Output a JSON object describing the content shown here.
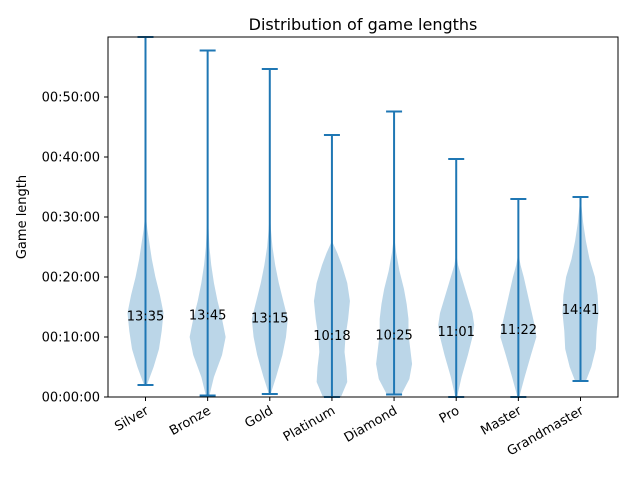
{
  "chart_data": {
    "type": "violin",
    "title": "Distribution of game lengths",
    "xlabel": "",
    "ylabel": "Game length",
    "ylim_seconds": [
      0,
      3600
    ],
    "y_ticks": [
      {
        "value": 0,
        "label": "00:00:00"
      },
      {
        "value": 600,
        "label": "00:10:00"
      },
      {
        "value": 1200,
        "label": "00:20:00"
      },
      {
        "value": 1800,
        "label": "00:30:00"
      },
      {
        "value": 2400,
        "label": "00:40:00"
      },
      {
        "value": 3000,
        "label": "00:50:00"
      }
    ],
    "x_tick_rotation_deg": -30,
    "grid": false,
    "categories": [
      "Silver",
      "Bronze",
      "Gold",
      "Platinum",
      "Diamond",
      "Pro",
      "Master",
      "Grandmaster"
    ],
    "series": [
      {
        "category": "Silver",
        "min": 120,
        "max": 3600,
        "median_label": "13:35",
        "density": [
          [
            120,
            0.08
          ],
          [
            300,
            0.45
          ],
          [
            480,
            0.75
          ],
          [
            660,
            0.9
          ],
          [
            840,
            1.0
          ],
          [
            1020,
            0.8
          ],
          [
            1200,
            0.55
          ],
          [
            1380,
            0.35
          ],
          [
            1560,
            0.2
          ],
          [
            1680,
            0.1
          ],
          [
            1800,
            0.03
          ],
          [
            2100,
            0.0
          ]
        ]
      },
      {
        "category": "Bronze",
        "min": 15,
        "max": 3465,
        "median_label": "13:45",
        "density": [
          [
            15,
            0.1
          ],
          [
            200,
            0.35
          ],
          [
            420,
            0.8
          ],
          [
            600,
            1.0
          ],
          [
            780,
            0.8
          ],
          [
            960,
            0.55
          ],
          [
            1140,
            0.35
          ],
          [
            1320,
            0.2
          ],
          [
            1500,
            0.1
          ],
          [
            1680,
            0.05
          ],
          [
            1800,
            0.02
          ],
          [
            2100,
            0.0
          ]
        ]
      },
      {
        "category": "Gold",
        "min": 30,
        "max": 3280,
        "median_label": "13:15",
        "density": [
          [
            30,
            0.05
          ],
          [
            200,
            0.35
          ],
          [
            420,
            0.7
          ],
          [
            600,
            0.9
          ],
          [
            780,
            1.0
          ],
          [
            960,
            0.75
          ],
          [
            1140,
            0.5
          ],
          [
            1320,
            0.3
          ],
          [
            1500,
            0.15
          ],
          [
            1680,
            0.06
          ],
          [
            1860,
            0.0
          ]
        ]
      },
      {
        "category": "Platinum",
        "min": 0,
        "max": 2620,
        "median_label": "10:18",
        "density": [
          [
            0,
            0.5
          ],
          [
            150,
            0.85
          ],
          [
            300,
            0.8
          ],
          [
            450,
            0.7
          ],
          [
            600,
            0.75
          ],
          [
            780,
            0.9
          ],
          [
            960,
            1.0
          ],
          [
            1140,
            0.85
          ],
          [
            1320,
            0.55
          ],
          [
            1440,
            0.3
          ],
          [
            1560,
            0.0
          ]
        ]
      },
      {
        "category": "Diamond",
        "min": 25,
        "max": 2855,
        "median_label": "10:25",
        "density": [
          [
            25,
            0.4
          ],
          [
            180,
            0.85
          ],
          [
            330,
            1.0
          ],
          [
            480,
            0.9
          ],
          [
            630,
            0.8
          ],
          [
            780,
            0.8
          ],
          [
            930,
            0.7
          ],
          [
            1080,
            0.55
          ],
          [
            1260,
            0.3
          ],
          [
            1440,
            0.12
          ],
          [
            1620,
            0.0
          ]
        ]
      },
      {
        "category": "Pro",
        "min": 0,
        "max": 2380,
        "median_label": "11:01",
        "density": [
          [
            0,
            0.05
          ],
          [
            200,
            0.3
          ],
          [
            420,
            0.65
          ],
          [
            600,
            0.9
          ],
          [
            720,
            1.0
          ],
          [
            840,
            0.9
          ],
          [
            960,
            0.7
          ],
          [
            1080,
            0.5
          ],
          [
            1200,
            0.3
          ],
          [
            1320,
            0.1
          ],
          [
            1440,
            0.0
          ]
        ]
      },
      {
        "category": "Master",
        "min": 0,
        "max": 1980,
        "median_label": "11:22",
        "density": [
          [
            0,
            0.05
          ],
          [
            200,
            0.35
          ],
          [
            420,
            0.7
          ],
          [
            600,
            1.0
          ],
          [
            720,
            0.9
          ],
          [
            840,
            0.75
          ],
          [
            960,
            0.6
          ],
          [
            1080,
            0.45
          ],
          [
            1200,
            0.3
          ],
          [
            1320,
            0.12
          ],
          [
            1440,
            0.0
          ]
        ]
      },
      {
        "category": "Grandmaster",
        "min": 160,
        "max": 2000,
        "median_label": "14:41",
        "density": [
          [
            160,
            0.3
          ],
          [
            300,
            0.6
          ],
          [
            480,
            0.85
          ],
          [
            660,
            0.9
          ],
          [
            840,
            1.0
          ],
          [
            1020,
            0.95
          ],
          [
            1200,
            0.8
          ],
          [
            1380,
            0.5
          ],
          [
            1560,
            0.3
          ],
          [
            1740,
            0.15
          ],
          [
            1920,
            0.05
          ],
          [
            2000,
            0.0
          ]
        ]
      }
    ]
  }
}
